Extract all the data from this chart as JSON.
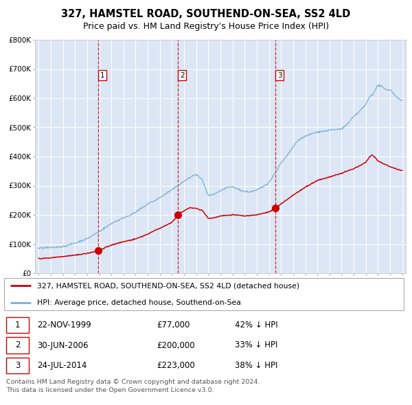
{
  "title": "327, HAMSTEL ROAD, SOUTHEND-ON-SEA, SS2 4LD",
  "subtitle": "Price paid vs. HM Land Registry's House Price Index (HPI)",
  "background_color": "#dce6f5",
  "grid_color": "#ffffff",
  "red_line_color": "#cc0000",
  "blue_line_color": "#7ab0d4",
  "sale_year_nums": [
    1999.896,
    2006.497,
    2014.558
  ],
  "sale_prices": [
    77000,
    200000,
    223000
  ],
  "sale_labels": [
    "1",
    "2",
    "3"
  ],
  "sale_notes": [
    "22-NOV-1999",
    "30-JUN-2006",
    "24-JUL-2014"
  ],
  "sale_amounts": [
    "£77,000",
    "£200,000",
    "£223,000"
  ],
  "sale_pct": [
    "42% ↓ HPI",
    "33% ↓ HPI",
    "38% ↓ HPI"
  ],
  "legend_red": "327, HAMSTEL ROAD, SOUTHEND-ON-SEA, SS2 4LD (detached house)",
  "legend_blue": "HPI: Average price, detached house, Southend-on-Sea",
  "footer": "Contains HM Land Registry data © Crown copyright and database right 2024.\nThis data is licensed under the Open Government Licence v3.0.",
  "ylim": [
    0,
    800000
  ],
  "yticks": [
    0,
    100000,
    200000,
    300000,
    400000,
    500000,
    600000,
    700000,
    800000
  ],
  "ytick_labels": [
    "£0",
    "£100K",
    "£200K",
    "£300K",
    "£400K",
    "£500K",
    "£600K",
    "£700K",
    "£800K"
  ],
  "xstart_year": 1995,
  "xend_year": 2025,
  "hpi_anchors_x": [
    1995.0,
    1996.0,
    1997.0,
    1998.0,
    1999.0,
    2000.0,
    2001.0,
    2002.0,
    2003.0,
    2004.0,
    2004.5,
    2005.0,
    2006.0,
    2006.5,
    2007.0,
    2007.5,
    2008.0,
    2008.5,
    2009.0,
    2009.5,
    2010.0,
    2010.5,
    2011.0,
    2011.5,
    2012.0,
    2012.5,
    2013.0,
    2013.5,
    2014.0,
    2014.5,
    2015.0,
    2015.5,
    2016.0,
    2016.5,
    2017.0,
    2017.5,
    2018.0,
    2018.5,
    2019.0,
    2019.5,
    2020.0,
    2020.5,
    2021.0,
    2021.5,
    2022.0,
    2022.3,
    2022.6,
    2023.0,
    2023.3,
    2023.6,
    2024.0,
    2024.5,
    2025.0
  ],
  "hpi_anchors_y": [
    85000,
    88000,
    93000,
    105000,
    120000,
    145000,
    172000,
    192000,
    210000,
    238000,
    248000,
    260000,
    285000,
    300000,
    315000,
    328000,
    338000,
    320000,
    265000,
    270000,
    282000,
    292000,
    295000,
    285000,
    278000,
    278000,
    283000,
    295000,
    308000,
    340000,
    375000,
    400000,
    430000,
    455000,
    465000,
    475000,
    482000,
    485000,
    488000,
    490000,
    492000,
    510000,
    535000,
    555000,
    578000,
    605000,
    615000,
    645000,
    640000,
    630000,
    630000,
    605000,
    590000
  ],
  "red_anchors_x": [
    1995.0,
    1996.0,
    1997.0,
    1998.0,
    1999.0,
    1999.9,
    2001.0,
    2002.0,
    2003.0,
    2004.0,
    2005.0,
    2005.5,
    2006.0,
    2006.497,
    2007.0,
    2007.5,
    2008.0,
    2008.5,
    2009.0,
    2009.5,
    2010.0,
    2011.0,
    2012.0,
    2013.0,
    2013.5,
    2014.0,
    2014.558,
    2015.0,
    2016.0,
    2017.0,
    2018.0,
    2019.0,
    2020.0,
    2021.0,
    2021.5,
    2022.0,
    2022.3,
    2022.5,
    2022.8,
    2023.0,
    2023.3,
    2023.6,
    2024.0,
    2024.5,
    2025.0
  ],
  "red_anchors_y": [
    50000,
    53000,
    57000,
    62000,
    68000,
    77000,
    97000,
    108000,
    118000,
    135000,
    155000,
    165000,
    175000,
    200000,
    215000,
    225000,
    222000,
    215000,
    188000,
    190000,
    196000,
    200000,
    196000,
    200000,
    205000,
    210000,
    223000,
    238000,
    268000,
    295000,
    318000,
    330000,
    342000,
    358000,
    368000,
    380000,
    398000,
    405000,
    395000,
    385000,
    378000,
    372000,
    365000,
    358000,
    352000
  ]
}
